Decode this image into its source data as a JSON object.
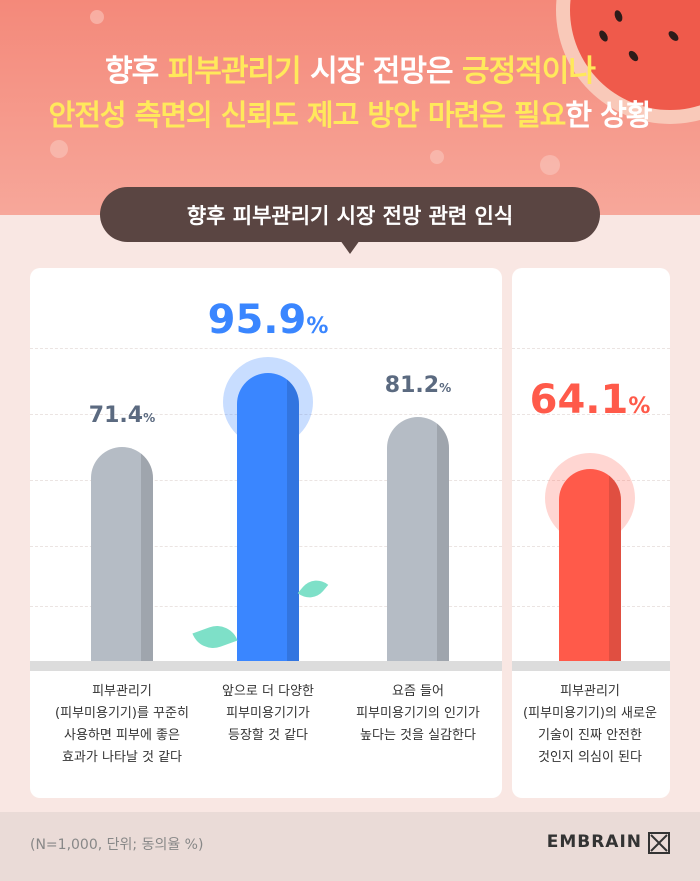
{
  "headline": {
    "line1_a": "향후 ",
    "line1_b": "피부관리기",
    "line1_c": " 시장 전망은 ",
    "line1_d": "긍정적이나",
    "line2_a": "안전성 측면의 신뢰도 제고 방안 마련은 필요",
    "line2_b": "한 상황"
  },
  "colors": {
    "gray": "#b5bcc5",
    "blue": "#3a86ff",
    "red": "#ff5a4a"
  },
  "chart_data": {
    "type": "bar",
    "title": "향후 피부관리기 시장 전망 관련 인식",
    "categories": [
      [
        "피부관리기",
        "(피부미용기기)를 꾸준히",
        "사용하면 피부에 좋은",
        "효과가 나타날 것 같다"
      ],
      [
        "앞으로 더 다양한",
        "피부미용기기가",
        "등장할 것 같다"
      ],
      [
        "요즘 들어",
        "피부미용기기의 인기가",
        "높다는 것을 실감한다"
      ],
      [
        "피부관리기",
        "(피부미용기기)의 새로운",
        "기술이 진짜 안전한",
        "것인지 의심이 된다"
      ]
    ],
    "values": [
      71.4,
      95.9,
      81.2,
      64.1
    ],
    "value_labels": [
      "71.4",
      "95.9",
      "81.2",
      "64.1"
    ],
    "unit": "%",
    "highlight": [
      "none",
      "blue",
      "none",
      "red"
    ],
    "ylim": [
      0,
      100
    ],
    "grid": true
  },
  "footer": {
    "note": "(N=1,000, 단위; 동의율 %)",
    "brand": "EMBRAIN"
  }
}
